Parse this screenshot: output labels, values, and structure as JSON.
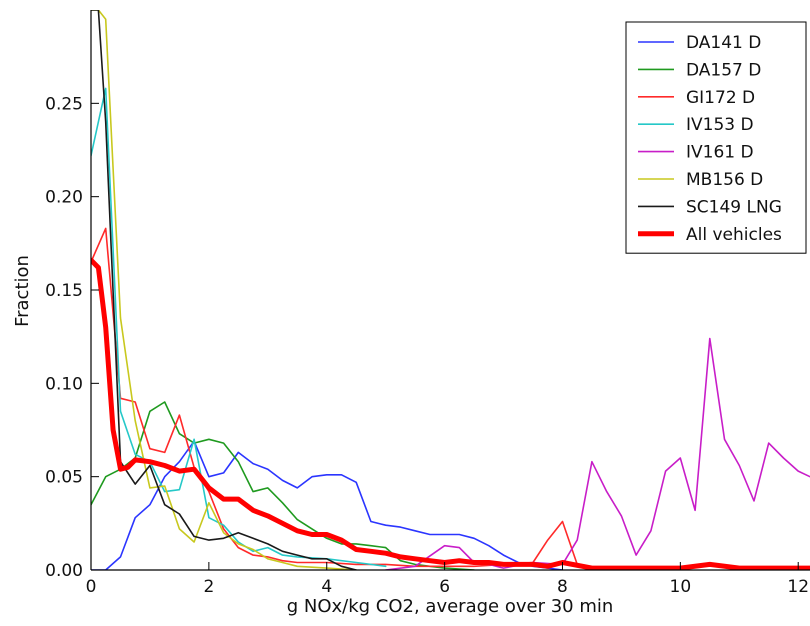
{
  "chart_data": {
    "type": "line",
    "xlabel": "g NOx/kg CO2, average over 30 min",
    "ylabel": "Fraction",
    "xlim": [
      0,
      12.2
    ],
    "ylim": [
      0,
      0.3
    ],
    "xticks": [
      0,
      2,
      4,
      6,
      8,
      10,
      12
    ],
    "yticks": [
      0.0,
      0.05,
      0.1,
      0.15,
      0.2,
      0.25
    ],
    "ytick_labels": [
      "0.00",
      "0.05",
      "0.10",
      "0.15",
      "0.20",
      "0.25"
    ],
    "xtick_labels": [
      "0",
      "2",
      "4",
      "6",
      "8",
      "10",
      "12"
    ],
    "grid": false,
    "legend_position": "top-right",
    "series": [
      {
        "name": "DA141 D",
        "color": "#2b35ff",
        "width": 1.6,
        "x": [
          0,
          0.25,
          0.5,
          0.75,
          1.0,
          1.25,
          1.5,
          1.75,
          2.0,
          2.25,
          2.5,
          2.75,
          3.0,
          3.25,
          3.5,
          3.75,
          4.0,
          4.25,
          4.5,
          4.75,
          5.0,
          5.25,
          5.5,
          5.75,
          6.0,
          6.25,
          6.5,
          6.75,
          7.0,
          7.25,
          7.5,
          7.75,
          8.0
        ],
        "y": [
          0,
          0,
          0.007,
          0.028,
          0.035,
          0.05,
          0.058,
          0.069,
          0.05,
          0.052,
          0.063,
          0.057,
          0.054,
          0.048,
          0.044,
          0.05,
          0.051,
          0.051,
          0.047,
          0.026,
          0.024,
          0.023,
          0.021,
          0.019,
          0.019,
          0.019,
          0.017,
          0.013,
          0.008,
          0.004,
          0.002,
          0.001,
          0
        ]
      },
      {
        "name": "DA157 D",
        "color": "#1f9a1f",
        "width": 1.6,
        "x": [
          0,
          0.25,
          0.5,
          0.75,
          1.0,
          1.25,
          1.5,
          1.75,
          2.0,
          2.25,
          2.5,
          2.75,
          3.0,
          3.25,
          3.5,
          3.75,
          4.0,
          4.25,
          4.5,
          4.75,
          5.0,
          5.25,
          5.5,
          5.75,
          6.0,
          6.5
        ],
        "y": [
          0.035,
          0.05,
          0.054,
          0.06,
          0.085,
          0.09,
          0.073,
          0.068,
          0.07,
          0.068,
          0.058,
          0.042,
          0.044,
          0.036,
          0.027,
          0.022,
          0.017,
          0.014,
          0.014,
          0.013,
          0.012,
          0.005,
          0.003,
          0.002,
          0.001,
          0
        ]
      },
      {
        "name": "GI172 D",
        "color": "#ff2a2a",
        "width": 1.6,
        "x": [
          0,
          0.25,
          0.5,
          0.75,
          1.0,
          1.25,
          1.5,
          1.75,
          2.0,
          2.25,
          2.5,
          2.75,
          3.0,
          3.25,
          3.5,
          4.0,
          4.5,
          5.0,
          5.5,
          6.0,
          6.5,
          7.0,
          7.5,
          7.75,
          8.0,
          8.25,
          8.5
        ],
        "y": [
          0.165,
          0.183,
          0.092,
          0.09,
          0.065,
          0.063,
          0.083,
          0.055,
          0.042,
          0.022,
          0.012,
          0.008,
          0.007,
          0.005,
          0.004,
          0.004,
          0.003,
          0.003,
          0.002,
          0.002,
          0.002,
          0.003,
          0.004,
          0.016,
          0.026,
          0.003,
          0.001
        ]
      },
      {
        "name": "IV153 D",
        "color": "#25c8c8",
        "width": 1.6,
        "x": [
          0,
          0.25,
          0.5,
          0.75,
          1.0,
          1.25,
          1.5,
          1.75,
          2.0,
          2.25,
          2.5,
          2.75,
          3.0,
          3.25,
          3.5,
          4.0,
          4.5,
          5.0
        ],
        "y": [
          0.222,
          0.258,
          0.085,
          0.062,
          0.058,
          0.042,
          0.043,
          0.07,
          0.028,
          0.024,
          0.015,
          0.01,
          0.012,
          0.008,
          0.007,
          0.006,
          0.004,
          0.002
        ]
      },
      {
        "name": "IV161 D",
        "color": "#c81ec8",
        "width": 1.6,
        "x": [
          5.0,
          5.5,
          6.0,
          6.25,
          6.5,
          6.75,
          7.0,
          7.5,
          8.0,
          8.25,
          8.5,
          8.75,
          9.0,
          9.25,
          9.5,
          9.75,
          10.0,
          10.25,
          10.5,
          10.75,
          11.0,
          11.25,
          11.5,
          11.75,
          12.0,
          12.2
        ],
        "y": [
          0,
          0.002,
          0.013,
          0.012,
          0.004,
          0.003,
          0.001,
          0.004,
          0.003,
          0.016,
          0.058,
          0.042,
          0.029,
          0.008,
          0.021,
          0.053,
          0.06,
          0.032,
          0.124,
          0.07,
          0.056,
          0.037,
          0.068,
          0.06,
          0.053,
          0.05
        ]
      },
      {
        "name": "MB156 D",
        "color": "#c8c81e",
        "width": 1.6,
        "x": [
          0,
          0.125,
          0.25,
          0.5,
          0.75,
          1.0,
          1.25,
          1.5,
          1.75,
          2.0,
          2.25,
          2.5,
          2.75,
          3.0,
          3.25,
          3.5,
          4.0,
          4.5
        ],
        "y": [
          0.3,
          0.3,
          0.295,
          0.135,
          0.08,
          0.044,
          0.045,
          0.022,
          0.015,
          0.036,
          0.02,
          0.014,
          0.011,
          0.006,
          0.004,
          0.002,
          0.001,
          0
        ]
      },
      {
        "name": "SC149 LNG",
        "color": "#1a1a1a",
        "width": 1.6,
        "x": [
          0,
          0.125,
          0.25,
          0.5,
          0.75,
          1.0,
          1.25,
          1.5,
          1.75,
          2.0,
          2.25,
          2.5,
          2.75,
          3.0,
          3.25,
          3.5,
          3.75,
          4.0,
          4.25,
          4.5
        ],
        "y": [
          0.3,
          0.3,
          0.24,
          0.058,
          0.046,
          0.056,
          0.035,
          0.03,
          0.018,
          0.016,
          0.017,
          0.02,
          0.017,
          0.014,
          0.01,
          0.008,
          0.006,
          0.006,
          0.002,
          0
        ]
      },
      {
        "name": "All vehicles",
        "color": "#ff0000",
        "width": 5,
        "x": [
          0,
          0.125,
          0.25,
          0.375,
          0.5,
          0.625,
          0.75,
          1.0,
          1.25,
          1.5,
          1.75,
          2.0,
          2.25,
          2.5,
          2.75,
          3.0,
          3.25,
          3.5,
          3.75,
          4.0,
          4.25,
          4.5,
          4.75,
          5.0,
          5.25,
          5.5,
          5.75,
          6.0,
          6.25,
          6.5,
          6.75,
          7.0,
          7.25,
          7.5,
          7.75,
          8.0,
          8.5,
          9.0,
          9.5,
          10.0,
          10.5,
          11.0,
          11.5,
          12.0,
          12.2
        ],
        "y": [
          0.166,
          0.162,
          0.13,
          0.075,
          0.054,
          0.055,
          0.059,
          0.058,
          0.056,
          0.053,
          0.054,
          0.044,
          0.038,
          0.038,
          0.032,
          0.029,
          0.025,
          0.021,
          0.019,
          0.019,
          0.016,
          0.011,
          0.01,
          0.009,
          0.007,
          0.006,
          0.005,
          0.004,
          0.005,
          0.004,
          0.004,
          0.003,
          0.003,
          0.003,
          0.002,
          0.004,
          0.001,
          0.001,
          0.001,
          0.001,
          0.003,
          0.001,
          0.001,
          0.001,
          0.001
        ]
      }
    ]
  }
}
